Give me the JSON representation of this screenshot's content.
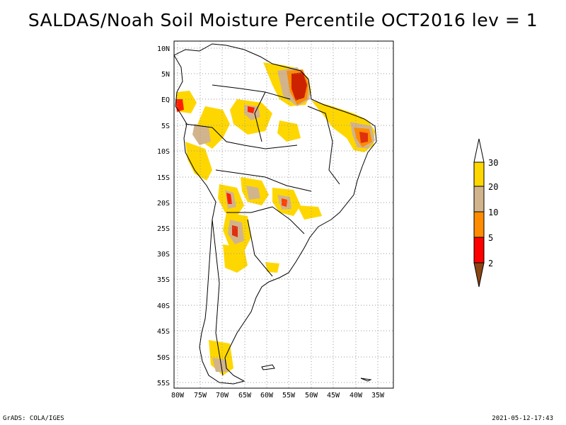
{
  "title": "SALDAS/Noah Soil Moisture Percentile OCT2016 lev = 1",
  "map": {
    "lat_labels": [
      "10N",
      "5N",
      "EQ",
      "5S",
      "10S",
      "15S",
      "20S",
      "25S",
      "30S",
      "35S",
      "40S",
      "45S",
      "50S",
      "55S"
    ],
    "lon_labels": [
      "80W",
      "75W",
      "70W",
      "65W",
      "60W",
      "55W",
      "50W",
      "45W",
      "40W",
      "35W"
    ]
  },
  "colorbar": {
    "levels": [
      "30",
      "20",
      "10",
      "5",
      "2"
    ],
    "colors": {
      "above_30": "#ffffff",
      "c20_30": "#ffd700",
      "c10_20": "#d2b48c",
      "c5_10": "#ff8c00",
      "c2_5": "#ff0000",
      "below_2": "#8b4513"
    }
  },
  "footer": {
    "left": "GrADS: COLA/IGES",
    "right": "2021-05-12-17:43"
  }
}
